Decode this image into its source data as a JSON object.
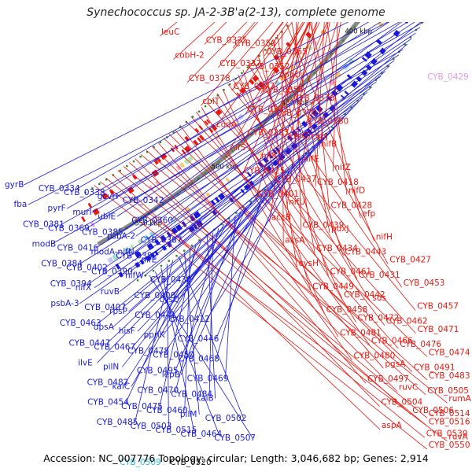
{
  "title": "Synechococcus sp. JA-2-3B'a(2-13), complete genome",
  "footer": {
    "accession": "Accession: NC_007776",
    "topology": "Topology: circular; Length: 3,046,682 bp; Genes: 2,914"
  },
  "colors": {
    "forward_strand": "#e8170f",
    "reverse_strand": "#1a1ad8",
    "backbone": "#888888",
    "highlight_label": "#e598e6",
    "cyan_label": "#2fb8d8",
    "tick_marks": "#2a8a2a"
  },
  "position_markers": [
    "350 kbp",
    "400 kbp",
    "450 kbp",
    "500 kbp",
    "550 kbp"
  ],
  "red_labels": [
    "leuC",
    "CYB_0335",
    "CYB_0350",
    "CYB_0365",
    "cobH-2",
    "CYB_0337",
    "CYB_0352",
    "cobU",
    "CYB_0378",
    "CYB_0377",
    "CYB_0356",
    "CYB_0376",
    "cbiT",
    "CYB_0375",
    "CYB_0370",
    "CYB_0380",
    "codA",
    "CYB_0383",
    "cbiG/cobJ",
    "nifB",
    "nifS",
    "nifK",
    "nifE",
    "nifZ",
    "CYB_0425",
    "CYB_0437",
    "CYB_0418",
    "nifD",
    "CYB_0401",
    "nifU",
    "CYB_0428",
    "efp",
    "accB",
    "CYB_0439",
    "pdxJ",
    "nifH",
    "aksA",
    "CYB_0434",
    "CYB_0443",
    "CYB_0427",
    "cysH",
    "CYB_0461",
    "CYB_0431",
    "CYB_0453",
    "CYB_0449",
    "CYB_0442",
    "sds",
    "CYB_0457",
    "CYB_0458",
    "CYB_0472",
    "CYB_0462",
    "CYB_0471",
    "CYB_0481",
    "CYB_0466",
    "CYB_0476",
    "CYB_0474",
    "CYB_0480",
    "pgsA",
    "CYB_0491",
    "CYB_0483",
    "CYB_0497",
    "ruvC",
    "CYB_0505",
    "rumA",
    "CYB_0504",
    "CYB_0506",
    "CYB_0514",
    "CYB_0516",
    "aspA",
    "CYB_0530",
    "ruvA",
    "CYB_0550"
  ],
  "pink_labels": [
    "CYB_0429"
  ],
  "blue_labels": [
    "gyrB",
    "CYB_0334",
    "CYB_0338",
    "gcvH",
    "CYB_0342",
    "fba",
    "pyrF",
    "murI",
    "ubiE",
    "CYB_0360",
    "CYB_0381",
    "CYB_0369",
    "CYB_0385",
    "psbA-2",
    "CYB_0387",
    "modB",
    "CYB_0416",
    "modA-nifN",
    "CYB_0382",
    "nifE",
    "CYB_0384",
    "CYB_0402",
    "CYB_0390",
    "nifW",
    "CYB_0430",
    "CYB_0394",
    "nifX",
    "ruvB",
    "CYB_0400",
    "cysQ",
    "psbA-3",
    "CYB_0407",
    "rpsP",
    "CYB_0441",
    "CYB_0412",
    "CYB_0463",
    "dpsA",
    "hisF",
    "ppnK",
    "CYB_0446",
    "CYB_0447",
    "CYB_0467",
    "CYB_0478",
    "CYB_0450",
    "CYB_0468",
    "ilvE",
    "pilN",
    "CYB_0495",
    "lepB",
    "CYB_0469",
    "CYB_0482",
    "kaiC",
    "CYB_0470",
    "CYB_0484",
    "kaiB",
    "CYB_0454",
    "CYB_0475",
    "CYB_0460",
    "pilM",
    "CYB_0502",
    "CYB_0485",
    "CYB_0503",
    "CYB_0515",
    "CYB_0464",
    "CYB_0507"
  ],
  "cyan_labels": [
    "CYB_0509"
  ],
  "black_labels": [
    "CYB_0520"
  ]
}
